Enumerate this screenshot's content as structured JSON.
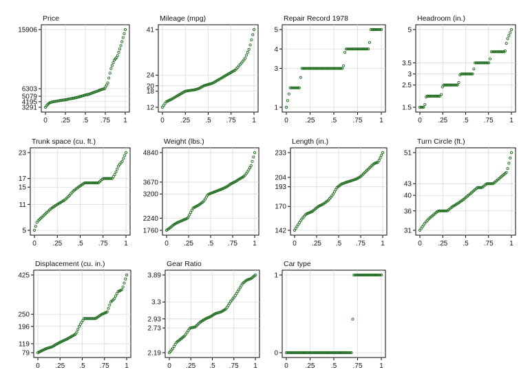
{
  "chart_data": [
    {
      "type": "scatter",
      "title": "Price",
      "xticks": [
        "0",
        ".25",
        ".5",
        ".75",
        "1"
      ],
      "yticks": [
        "3291",
        "4195",
        "5079",
        "6303",
        "15906"
      ],
      "yvals": [
        3291,
        4195,
        5079,
        6303,
        15906
      ],
      "ylim": [
        3291,
        15906
      ],
      "points": [
        [
          0,
          3291
        ],
        [
          0.03,
          3780
        ],
        [
          0.06,
          4060
        ],
        [
          0.1,
          4190
        ],
        [
          0.15,
          4300
        ],
        [
          0.2,
          4420
        ],
        [
          0.25,
          4500
        ],
        [
          0.3,
          4640
        ],
        [
          0.35,
          4750
        ],
        [
          0.4,
          4900
        ],
        [
          0.45,
          5080
        ],
        [
          0.5,
          5280
        ],
        [
          0.55,
          5420
        ],
        [
          0.6,
          5680
        ],
        [
          0.65,
          5900
        ],
        [
          0.7,
          6170
        ],
        [
          0.74,
          6300
        ],
        [
          0.78,
          7200
        ],
        [
          0.82,
          9500
        ],
        [
          0.86,
          10900
        ],
        [
          0.9,
          11500
        ],
        [
          0.95,
          13500
        ],
        [
          1,
          15906
        ]
      ]
    },
    {
      "type": "scatter",
      "title": "Mileage (mpg)",
      "xticks": [
        "0",
        ".25",
        ".5",
        ".75",
        "1"
      ],
      "yticks": [
        "12",
        "18",
        "20",
        "24",
        "41"
      ],
      "yvals": [
        12,
        18,
        20,
        24,
        41
      ],
      "ylim": [
        12,
        41
      ],
      "points": [
        [
          0,
          12
        ],
        [
          0.04,
          14
        ],
        [
          0.1,
          15
        ],
        [
          0.15,
          16
        ],
        [
          0.2,
          17
        ],
        [
          0.25,
          18
        ],
        [
          0.35,
          18.5
        ],
        [
          0.4,
          19
        ],
        [
          0.45,
          20
        ],
        [
          0.55,
          21
        ],
        [
          0.6,
          22
        ],
        [
          0.65,
          23
        ],
        [
          0.7,
          24
        ],
        [
          0.75,
          25
        ],
        [
          0.8,
          26
        ],
        [
          0.85,
          28
        ],
        [
          0.9,
          30
        ],
        [
          0.95,
          34
        ],
        [
          1,
          41
        ]
      ]
    },
    {
      "type": "scatter",
      "title": "Repair Record 1978",
      "xticks": [
        "0",
        ".25",
        ".5",
        ".75",
        "1"
      ],
      "yticks": [
        "1",
        "3",
        "4",
        "5"
      ],
      "yvals": [
        1,
        3,
        4,
        5
      ],
      "ylim": [
        1,
        5
      ],
      "points": [
        [
          0,
          1
        ],
        [
          0.04,
          2
        ],
        [
          0.14,
          2
        ],
        [
          0.16,
          3
        ],
        [
          0.6,
          3
        ],
        [
          0.62,
          4
        ],
        [
          0.87,
          4
        ],
        [
          0.89,
          5
        ],
        [
          1,
          5
        ]
      ]
    },
    {
      "type": "scatter",
      "title": "Headroom (in.)",
      "xticks": [
        "0",
        ".25",
        ".5",
        ".75",
        "1"
      ],
      "yticks": [
        "1.5",
        "2.5",
        "3",
        "3.5",
        "5"
      ],
      "yvals": [
        1.5,
        2.5,
        3,
        3.5,
        5
      ],
      "ylim": [
        1.5,
        5
      ],
      "points": [
        [
          0,
          1.5
        ],
        [
          0.05,
          1.5
        ],
        [
          0.07,
          2
        ],
        [
          0.23,
          2
        ],
        [
          0.25,
          2.5
        ],
        [
          0.42,
          2.5
        ],
        [
          0.44,
          3
        ],
        [
          0.58,
          3
        ],
        [
          0.6,
          3.5
        ],
        [
          0.76,
          3.5
        ],
        [
          0.78,
          4
        ],
        [
          0.93,
          4
        ],
        [
          0.95,
          4.5
        ],
        [
          1,
          5
        ]
      ]
    },
    {
      "type": "scatter",
      "title": "Trunk space (cu. ft.)",
      "xticks": [
        "0",
        ".25",
        ".5",
        ".75",
        "1"
      ],
      "yticks": [
        "5",
        "11",
        "15",
        "17",
        "23"
      ],
      "yvals": [
        5,
        11,
        15,
        17,
        23
      ],
      "ylim": [
        5,
        23
      ],
      "points": [
        [
          0,
          5
        ],
        [
          0.03,
          7
        ],
        [
          0.08,
          8
        ],
        [
          0.13,
          9
        ],
        [
          0.18,
          10
        ],
        [
          0.25,
          11
        ],
        [
          0.33,
          12
        ],
        [
          0.38,
          13
        ],
        [
          0.42,
          14
        ],
        [
          0.48,
          15
        ],
        [
          0.55,
          16
        ],
        [
          0.7,
          16
        ],
        [
          0.75,
          17
        ],
        [
          0.85,
          17
        ],
        [
          0.88,
          18
        ],
        [
          0.92,
          20
        ],
        [
          0.96,
          21
        ],
        [
          1,
          23
        ]
      ]
    },
    {
      "type": "scatter",
      "title": "Weight (lbs.)",
      "xticks": [
        "0",
        ".25",
        ".5",
        ".75",
        "1"
      ],
      "yticks": [
        "1760",
        "2240",
        "3200",
        "3670",
        "4840"
      ],
      "yvals": [
        1760,
        2240,
        3200,
        3670,
        4840
      ],
      "ylim": [
        1760,
        4840
      ],
      "points": [
        [
          0,
          1760
        ],
        [
          0.04,
          1860
        ],
        [
          0.08,
          1980
        ],
        [
          0.12,
          2060
        ],
        [
          0.18,
          2150
        ],
        [
          0.24,
          2240
        ],
        [
          0.3,
          2640
        ],
        [
          0.36,
          2750
        ],
        [
          0.42,
          2900
        ],
        [
          0.47,
          3180
        ],
        [
          0.52,
          3250
        ],
        [
          0.58,
          3330
        ],
        [
          0.63,
          3400
        ],
        [
          0.68,
          3480
        ],
        [
          0.73,
          3600
        ],
        [
          0.78,
          3690
        ],
        [
          0.83,
          3800
        ],
        [
          0.88,
          3900
        ],
        [
          0.92,
          4080
        ],
        [
          0.96,
          4330
        ],
        [
          1,
          4840
        ]
      ]
    },
    {
      "type": "scatter",
      "title": "Length (in.)",
      "xticks": [
        "0",
        ".25",
        ".5",
        ".75",
        "1"
      ],
      "yticks": [
        "142",
        "170",
        "193",
        "204",
        "233"
      ],
      "yvals": [
        142,
        170,
        193,
        204,
        233
      ],
      "ylim": [
        142,
        233
      ],
      "points": [
        [
          0,
          142
        ],
        [
          0.03,
          147
        ],
        [
          0.08,
          155
        ],
        [
          0.13,
          161
        ],
        [
          0.2,
          164
        ],
        [
          0.27,
          170
        ],
        [
          0.33,
          173
        ],
        [
          0.38,
          177
        ],
        [
          0.43,
          183
        ],
        [
          0.48,
          192
        ],
        [
          0.53,
          196
        ],
        [
          0.58,
          198
        ],
        [
          0.64,
          200
        ],
        [
          0.7,
          202
        ],
        [
          0.75,
          205
        ],
        [
          0.8,
          210
        ],
        [
          0.85,
          215
        ],
        [
          0.9,
          220
        ],
        [
          0.95,
          222
        ],
        [
          1,
          233
        ]
      ]
    },
    {
      "type": "scatter",
      "title": "Turn Circle (ft.)",
      "xticks": [
        "0",
        ".25",
        ".5",
        ".75",
        "1"
      ],
      "yticks": [
        "31",
        "36",
        "40",
        "43",
        "51"
      ],
      "yvals": [
        31,
        36,
        40,
        43,
        51
      ],
      "ylim": [
        31,
        51
      ],
      "points": [
        [
          0,
          31
        ],
        [
          0.03,
          32
        ],
        [
          0.06,
          33
        ],
        [
          0.1,
          34
        ],
        [
          0.15,
          35
        ],
        [
          0.2,
          36
        ],
        [
          0.3,
          36
        ],
        [
          0.35,
          37
        ],
        [
          0.42,
          38
        ],
        [
          0.48,
          39
        ],
        [
          0.53,
          40
        ],
        [
          0.58,
          41
        ],
        [
          0.63,
          42
        ],
        [
          0.68,
          42
        ],
        [
          0.73,
          43
        ],
        [
          0.8,
          43
        ],
        [
          0.85,
          44
        ],
        [
          0.9,
          45
        ],
        [
          0.95,
          46
        ],
        [
          1,
          51
        ]
      ]
    },
    {
      "type": "scatter",
      "title": "Displacement (cu. in.)",
      "xticks": [
        "0",
        ".25",
        ".5",
        ".75",
        "1"
      ],
      "yticks": [
        "79",
        "119",
        "196",
        "250",
        "425"
      ],
      "yvals": [
        79,
        119,
        196,
        250,
        425
      ],
      "ylim": [
        79,
        425
      ],
      "points": [
        [
          0,
          79
        ],
        [
          0.05,
          89
        ],
        [
          0.1,
          98
        ],
        [
          0.16,
          105
        ],
        [
          0.22,
          119
        ],
        [
          0.28,
          131
        ],
        [
          0.33,
          140
        ],
        [
          0.38,
          151
        ],
        [
          0.43,
          163
        ],
        [
          0.47,
          200
        ],
        [
          0.52,
          231
        ],
        [
          0.6,
          231
        ],
        [
          0.65,
          231
        ],
        [
          0.72,
          250
        ],
        [
          0.78,
          260
        ],
        [
          0.82,
          304
        ],
        [
          0.86,
          318
        ],
        [
          0.9,
          350
        ],
        [
          0.95,
          360
        ],
        [
          1,
          425
        ]
      ]
    },
    {
      "type": "scatter",
      "title": "Gear Ratio",
      "xticks": [
        "0",
        ".25",
        ".5",
        ".75",
        "1"
      ],
      "yticks": [
        "2.19",
        "2.73",
        "2.93",
        "3.3",
        "3.89"
      ],
      "yvals": [
        2.19,
        2.73,
        2.93,
        3.3,
        3.89
      ],
      "ylim": [
        2.19,
        3.89
      ],
      "points": [
        [
          0,
          2.19
        ],
        [
          0.04,
          2.28
        ],
        [
          0.08,
          2.41
        ],
        [
          0.12,
          2.47
        ],
        [
          0.18,
          2.56
        ],
        [
          0.24,
          2.73
        ],
        [
          0.3,
          2.75
        ],
        [
          0.36,
          2.86
        ],
        [
          0.42,
          2.93
        ],
        [
          0.48,
          2.98
        ],
        [
          0.54,
          3.05
        ],
        [
          0.6,
          3.08
        ],
        [
          0.66,
          3.15
        ],
        [
          0.71,
          3.3
        ],
        [
          0.76,
          3.42
        ],
        [
          0.8,
          3.54
        ],
        [
          0.85,
          3.7
        ],
        [
          0.9,
          3.78
        ],
        [
          0.95,
          3.81
        ],
        [
          1,
          3.89
        ]
      ]
    },
    {
      "type": "scatter",
      "title": "Car type",
      "xticks": [
        "0",
        ".25",
        ".5",
        ".75",
        "1"
      ],
      "yticks": [
        "0",
        "1"
      ],
      "yvals": [
        0,
        1
      ],
      "ylim": [
        0,
        1
      ],
      "points": [
        [
          0,
          0
        ],
        [
          0.1,
          0
        ],
        [
          0.2,
          0
        ],
        [
          0.3,
          0
        ],
        [
          0.4,
          0
        ],
        [
          0.5,
          0
        ],
        [
          0.6,
          0
        ],
        [
          0.69,
          0
        ],
        [
          0.71,
          1
        ],
        [
          0.8,
          1
        ],
        [
          0.9,
          1
        ],
        [
          1,
          1
        ]
      ]
    }
  ]
}
